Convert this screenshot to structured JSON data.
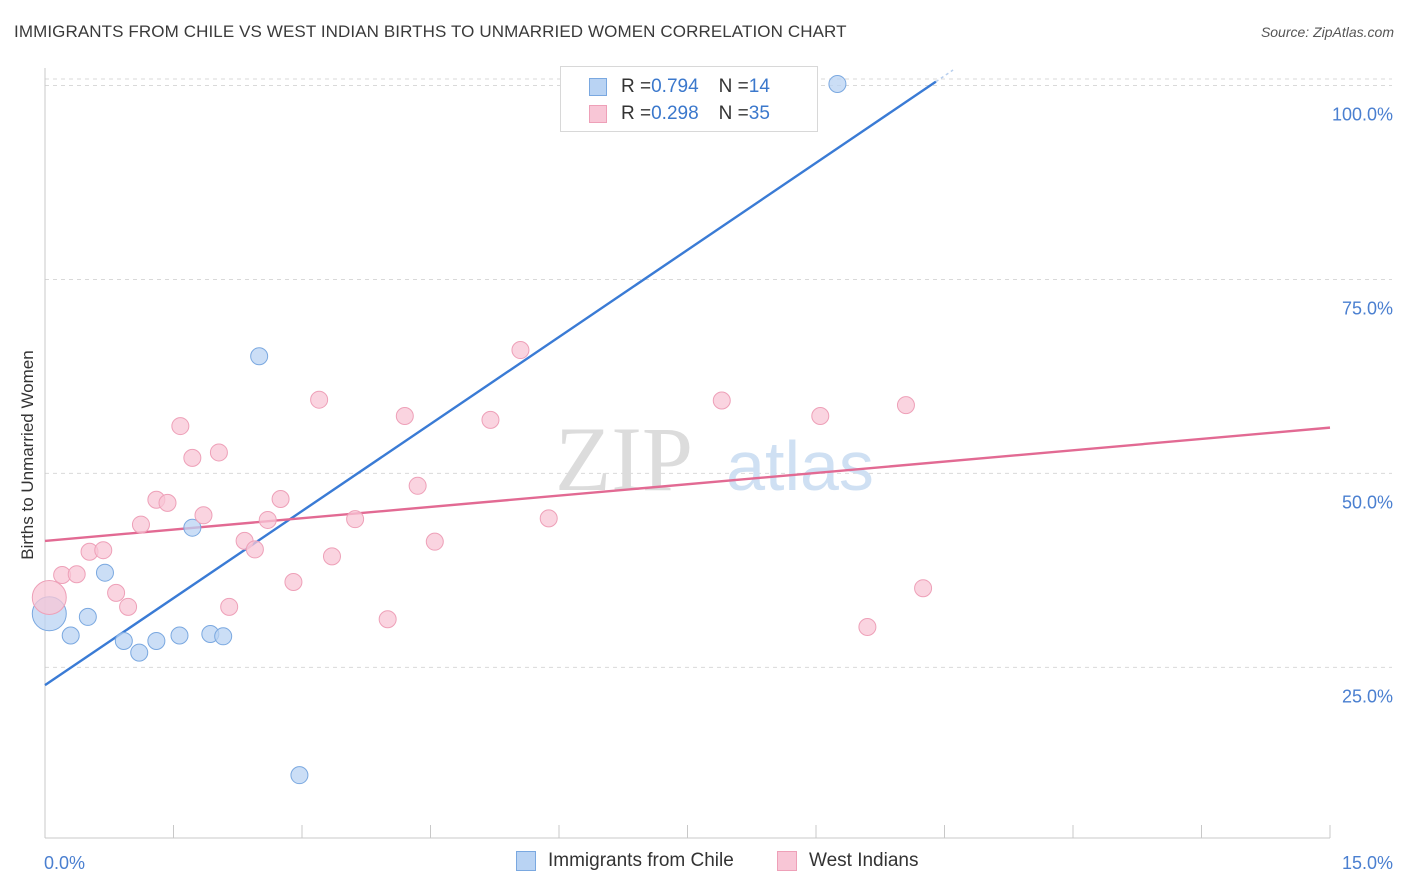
{
  "title": "IMMIGRANTS FROM CHILE VS WEST INDIAN BIRTHS TO UNMARRIED WOMEN CORRELATION CHART",
  "source": "Source: ZipAtlas.com",
  "watermark": {
    "zip": "ZIP",
    "atlas": "atlas"
  },
  "legend_top": [
    {
      "r_label": "R = ",
      "r_value": "0.794",
      "n_label": "N = ",
      "n_value": "14"
    },
    {
      "r_label": "R = ",
      "r_value": "0.298",
      "n_label": "N = ",
      "n_value": "35"
    }
  ],
  "legend_bottom": [
    "Immigrants from Chile",
    "West Indians"
  ],
  "colors": {
    "blue_fill": "#b9d3f3",
    "blue_stroke": "#7aa8e0",
    "blue_line": "#3a7bd5",
    "pink_fill": "#f8c6d6",
    "pink_stroke": "#eea0b8",
    "pink_line": "#e26a93",
    "grid": "#d9d9d9",
    "tick_text": "#4a7fd0"
  },
  "chart_data": {
    "type": "scatter",
    "title": "IMMIGRANTS FROM CHILE VS WEST INDIAN BIRTHS TO UNMARRIED WOMEN CORRELATION CHART",
    "xlabel": "",
    "ylabel": "Births to Unmarried Women",
    "xlim": [
      0,
      15
    ],
    "ylim": [
      3,
      102
    ],
    "x_tick_labels": [
      "0.0%",
      "15.0%"
    ],
    "y_ticks": [
      25,
      50,
      75,
      100
    ],
    "y_tick_labels": [
      "25.0%",
      "50.0%",
      "75.0%",
      "100.0%"
    ],
    "grid": true,
    "series": [
      {
        "name": "Immigrants from Chile",
        "r": 0.794,
        "n": 14,
        "points": [
          {
            "x": 0.05,
            "y": 31.9,
            "size": "large"
          },
          {
            "x": 0.3,
            "y": 29.1
          },
          {
            "x": 0.5,
            "y": 31.5
          },
          {
            "x": 0.7,
            "y": 37.2
          },
          {
            "x": 0.92,
            "y": 28.4
          },
          {
            "x": 1.1,
            "y": 26.9
          },
          {
            "x": 1.3,
            "y": 28.4
          },
          {
            "x": 1.57,
            "y": 29.1
          },
          {
            "x": 1.72,
            "y": 43.0
          },
          {
            "x": 1.93,
            "y": 29.3
          },
          {
            "x": 2.08,
            "y": 29.0
          },
          {
            "x": 2.5,
            "y": 65.1
          },
          {
            "x": 2.97,
            "y": 11.1
          },
          {
            "x": 9.25,
            "y": 100.2
          }
        ],
        "trend": {
          "x": [
            0,
            10.4
          ],
          "y": [
            22.7,
            100.5
          ]
        }
      },
      {
        "name": "West Indians",
        "r": 0.298,
        "n": 35,
        "points": [
          {
            "x": 0.05,
            "y": 34.0,
            "size": "large"
          },
          {
            "x": 0.2,
            "y": 36.9
          },
          {
            "x": 0.37,
            "y": 37.0
          },
          {
            "x": 0.52,
            "y": 39.9
          },
          {
            "x": 0.68,
            "y": 40.1
          },
          {
            "x": 0.83,
            "y": 34.6
          },
          {
            "x": 0.97,
            "y": 32.8
          },
          {
            "x": 1.12,
            "y": 43.4
          },
          {
            "x": 1.3,
            "y": 46.6
          },
          {
            "x": 1.43,
            "y": 46.2
          },
          {
            "x": 1.58,
            "y": 56.1
          },
          {
            "x": 1.72,
            "y": 52.0
          },
          {
            "x": 1.85,
            "y": 44.6
          },
          {
            "x": 2.03,
            "y": 52.7
          },
          {
            "x": 2.15,
            "y": 32.8
          },
          {
            "x": 2.33,
            "y": 41.3
          },
          {
            "x": 2.45,
            "y": 40.2
          },
          {
            "x": 2.6,
            "y": 44.0
          },
          {
            "x": 2.75,
            "y": 46.7
          },
          {
            "x": 2.9,
            "y": 36.0
          },
          {
            "x": 3.2,
            "y": 59.5
          },
          {
            "x": 3.35,
            "y": 39.3
          },
          {
            "x": 3.62,
            "y": 44.1
          },
          {
            "x": 4.0,
            "y": 31.2
          },
          {
            "x": 4.2,
            "y": 57.4
          },
          {
            "x": 4.35,
            "y": 48.4
          },
          {
            "x": 4.55,
            "y": 41.2
          },
          {
            "x": 5.2,
            "y": 56.9
          },
          {
            "x": 5.55,
            "y": 65.9
          },
          {
            "x": 5.88,
            "y": 44.2
          },
          {
            "x": 7.9,
            "y": 59.4
          },
          {
            "x": 9.05,
            "y": 57.4
          },
          {
            "x": 9.6,
            "y": 30.2
          },
          {
            "x": 10.05,
            "y": 58.8
          },
          {
            "x": 10.25,
            "y": 35.2
          }
        ],
        "trend": {
          "x": [
            0,
            15
          ],
          "y": [
            41.3,
            55.9
          ]
        }
      }
    ]
  }
}
